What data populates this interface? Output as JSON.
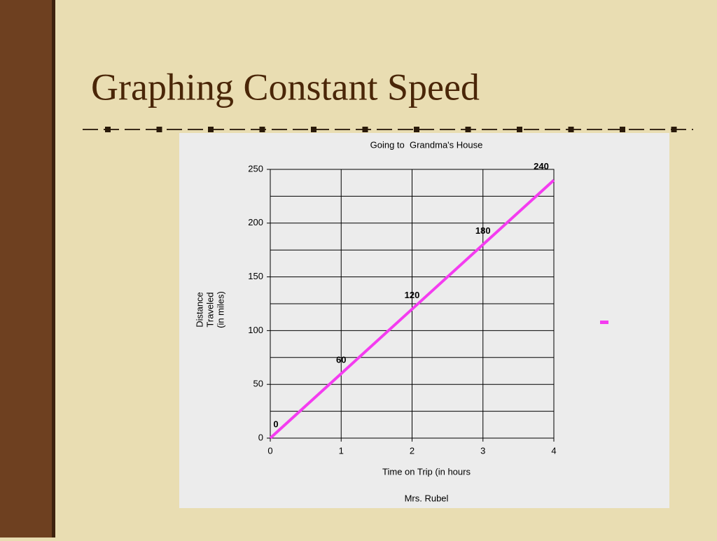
{
  "slide_title": "Graphing Constant Speed",
  "chart_data": {
    "type": "line",
    "title": "Going to  Grandma's House",
    "x_label": "Time on Trip (in hours",
    "y_label": "Distance Traveled (in miles)",
    "caption": "Mrs. Rubel",
    "x": [
      0,
      1,
      2,
      3,
      4
    ],
    "values": [
      0,
      60,
      120,
      180,
      240
    ],
    "color": "#f43cf0",
    "xlim": [
      0,
      4
    ],
    "xticks": [
      0,
      1,
      2,
      3,
      4
    ],
    "ylim": [
      0,
      250
    ],
    "yticks": [
      0,
      50,
      100,
      150,
      200,
      250
    ],
    "minor_yticks": [
      25,
      75,
      125,
      175,
      225
    ],
    "grid": true
  }
}
